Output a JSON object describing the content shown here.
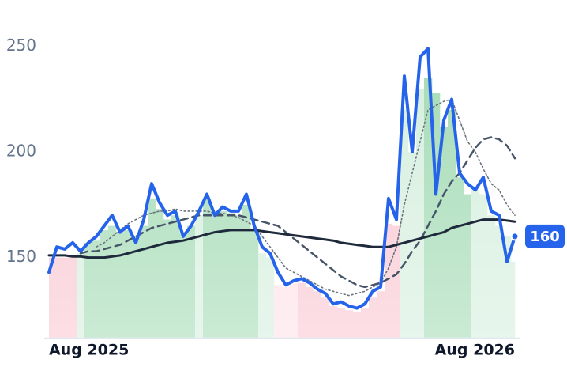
{
  "chart_data": {
    "type": "line",
    "categories": [
      "Aug 2025",
      null,
      null,
      null,
      null,
      null,
      null,
      null,
      null,
      null,
      null,
      null,
      null,
      null,
      null,
      null,
      null,
      null,
      null,
      null,
      null,
      null,
      null,
      null,
      null,
      null,
      null,
      null,
      null,
      null,
      null,
      null,
      null,
      null,
      null,
      null,
      null,
      null,
      null,
      null,
      null,
      null,
      null,
      null,
      null,
      null,
      null,
      null,
      null,
      null,
      null,
      null,
      null,
      null,
      null,
      null,
      null,
      null,
      null,
      "Aug 2026"
    ],
    "ylim": [
      112,
      272
    ],
    "yticks": [
      150,
      200,
      250
    ],
    "series": [
      {
        "color": "#2563eb",
        "style": "solid",
        "values": [
          143,
          155,
          154,
          157,
          153,
          157,
          160,
          165,
          170,
          162,
          165,
          157,
          168,
          185,
          176,
          170,
          172,
          160,
          165,
          172,
          180,
          170,
          174,
          172,
          172,
          180,
          165,
          155,
          152,
          143,
          137,
          139,
          140,
          138,
          135,
          133,
          128,
          129,
          127,
          126,
          128,
          134,
          136,
          178,
          168,
          236,
          200,
          245,
          249,
          180,
          215,
          225,
          190,
          185,
          182,
          188,
          172,
          170,
          148,
          160
        ]
      },
      {
        "color": "#6b7280",
        "style": "dotted",
        "values": [
          null,
          null,
          null,
          null,
          null,
          null,
          155,
          157,
          160,
          163,
          166,
          168,
          170,
          171,
          172,
          172,
          173,
          172,
          172,
          172,
          172,
          171,
          171,
          170,
          169,
          167,
          165,
          160,
          155,
          150,
          145,
          143,
          141,
          139,
          137,
          135,
          134,
          133,
          132,
          133,
          134,
          136,
          138,
          145,
          155,
          175,
          190,
          205,
          220,
          222,
          224,
          225,
          215,
          205,
          200,
          192,
          185,
          182,
          175,
          170
        ]
      },
      {
        "color": "#475569",
        "style": "dashed",
        "values": [
          null,
          null,
          null,
          null,
          152,
          153,
          153,
          154,
          155,
          156,
          158,
          160,
          162,
          164,
          165,
          166,
          167,
          168,
          169,
          170,
          170,
          170,
          170,
          170,
          170,
          169,
          168,
          167,
          166,
          165,
          162,
          159,
          156,
          153,
          150,
          147,
          144,
          141,
          139,
          137,
          136,
          137,
          138,
          140,
          142,
          147,
          153,
          158,
          165,
          172,
          180,
          186,
          190,
          196,
          202,
          206,
          207,
          206,
          203,
          197
        ]
      },
      {
        "color": "#1e293b",
        "style": "solid",
        "values": [
          151,
          151,
          151,
          150.5,
          150.5,
          150,
          150,
          150,
          150.5,
          151,
          152,
          153,
          154,
          155,
          156,
          157,
          157.5,
          158,
          159,
          160,
          161,
          162,
          162.5,
          163,
          163,
          163,
          163,
          162.5,
          162,
          161.5,
          161,
          160.5,
          160,
          159.5,
          159,
          158.5,
          158,
          157,
          156.5,
          156,
          155.5,
          155,
          155,
          155,
          156,
          157,
          158,
          159,
          160,
          161,
          162,
          164,
          165,
          166,
          167,
          168,
          168,
          168,
          167.5,
          167
        ]
      }
    ],
    "bars": {
      "values": [
        150,
        150,
        150,
        150,
        152,
        157,
        158,
        163,
        165,
        162,
        163,
        160,
        165,
        178,
        173,
        168,
        170,
        162,
        165,
        170,
        178,
        172,
        172,
        171,
        170,
        175,
        163,
        152,
        150,
        137,
        136,
        138,
        138,
        136,
        134,
        131,
        127,
        126,
        125,
        124,
        126,
        131,
        134,
        166,
        165,
        220,
        200,
        230,
        235,
        228,
        212,
        220,
        188,
        180,
        182,
        180,
        170,
        165,
        160,
        148
      ],
      "colors": [
        "#f9c4cf",
        "#f9c4cf",
        "#f9c4cf",
        "#f9c4cf",
        "#d3eedc",
        "#9fd9b1",
        "#9fd9b1",
        "#9fd9b1",
        "#9fd9b1",
        "#9fd9b1",
        "#9fd9b1",
        "#9fd9b1",
        "#9fd9b1",
        "#9fd9b1",
        "#9fd9b1",
        "#9fd9b1",
        "#9fd9b1",
        "#9fd9b1",
        "#9fd9b1",
        "#d3eedc",
        "#9fd9b1",
        "#9fd9b1",
        "#9fd9b1",
        "#9fd9b1",
        "#9fd9b1",
        "#9fd9b1",
        "#9fd9b1",
        "#d3eedc",
        "#d3eedc",
        "#fde0e6",
        "#fde0e6",
        "#fde0e6",
        "#f9c4cf",
        "#f9c4cf",
        "#f9c4cf",
        "#f9c4cf",
        "#f9c4cf",
        "#f9c4cf",
        "#f9c4cf",
        "#f9c4cf",
        "#f9c4cf",
        "#f9c4cf",
        "#f9c4cf",
        "#f9c4cf",
        "#f9c4cf",
        "#d3eedc",
        "#d3eedc",
        "#d3eedc",
        "#9fd9b1",
        "#9fd9b1",
        "#9fd9b1",
        "#9fd9b1",
        "#9fd9b1",
        "#9fd9b1",
        "#d3eedc",
        "#d3eedc",
        "#d3eedc",
        "#d3eedc",
        "#d3eedc",
        "#d3eedc"
      ]
    }
  }
}
